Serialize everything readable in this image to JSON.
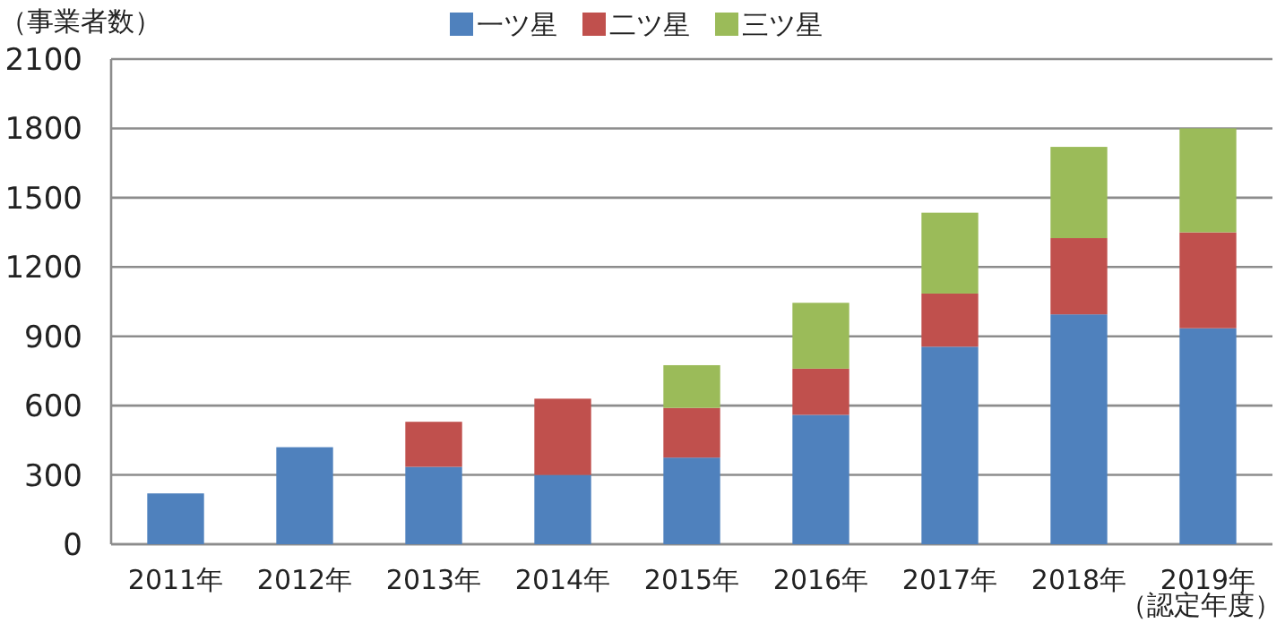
{
  "chart_data": {
    "type": "bar",
    "stacked": true,
    "ylabel": "（事業者数）",
    "xlabel": "（認定年度）",
    "categories": [
      "2011年",
      "2012年",
      "2013年",
      "2014年",
      "2015年",
      "2016年",
      "2017年",
      "2018年",
      "2019年"
    ],
    "ylim": [
      0,
      2100
    ],
    "yticks": [
      0,
      300,
      600,
      900,
      1200,
      1500,
      1800,
      2100
    ],
    "grid": "y",
    "legend": "top",
    "series": [
      {
        "name": "一ツ星",
        "color": "#4f81bd",
        "values": [
          220,
          420,
          335,
          300,
          375,
          560,
          855,
          995,
          935
        ]
      },
      {
        "name": "二ツ星",
        "color": "#c0504d",
        "values": [
          null,
          null,
          195,
          330,
          215,
          200,
          230,
          330,
          415
        ]
      },
      {
        "name": "三ツ星",
        "color": "#9bbb59",
        "values": [
          null,
          null,
          null,
          null,
          185,
          285,
          350,
          395,
          450
        ]
      }
    ]
  }
}
